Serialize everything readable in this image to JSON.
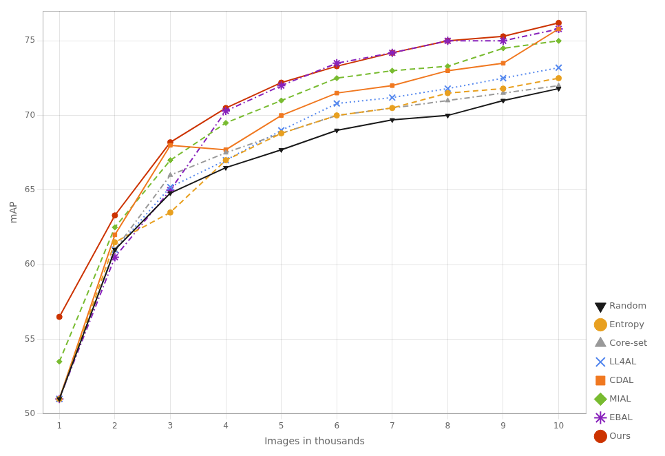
{
  "chart_data": {
    "type": "line",
    "x_label": "Images in thousands",
    "y_label": "mAP",
    "x": [
      1,
      2,
      3,
      4,
      5,
      6,
      7,
      8,
      9,
      10
    ],
    "series": [
      {
        "name": "Random",
        "color": "#1a1a1a",
        "line_style": "solid",
        "marker": "triangle_down",
        "values": [
          51.0,
          61.0,
          64.8,
          66.5,
          67.7,
          69.0,
          69.7,
          70.0,
          71.0,
          71.8
        ]
      },
      {
        "name": "Entropy",
        "color": "#E8A020",
        "line_style": "dashed",
        "marker": "circle",
        "values": [
          51.0,
          61.5,
          63.5,
          67.0,
          68.8,
          70.0,
          70.5,
          71.5,
          71.8,
          72.5
        ]
      },
      {
        "name": "Core-set",
        "color": "#999999",
        "line_style": "dashdot",
        "marker": "triangle",
        "values": [
          51.0,
          61.0,
          66.0,
          67.5,
          68.8,
          70.0,
          70.5,
          71.0,
          71.5,
          72.0
        ]
      },
      {
        "name": "LL4AL",
        "color": "#5588EE",
        "line_style": "dotted",
        "marker": "x",
        "values": [
          51.0,
          61.0,
          65.2,
          67.0,
          69.0,
          70.8,
          71.2,
          71.8,
          72.5,
          73.2
        ]
      },
      {
        "name": "CDAL",
        "color": "#F07820",
        "line_style": "solid",
        "marker": "square",
        "values": [
          51.0,
          62.0,
          68.0,
          67.7,
          70.0,
          71.5,
          72.0,
          73.0,
          73.5,
          75.8
        ]
      },
      {
        "name": "MIAL",
        "color": "#78BB30",
        "line_style": "dashed",
        "marker": "diamond",
        "values": [
          53.5,
          62.5,
          67.0,
          69.5,
          71.0,
          72.5,
          73.0,
          73.3,
          74.5,
          75.0
        ]
      },
      {
        "name": "EBAL",
        "color": "#8822BB",
        "line_style": "dashdot",
        "marker": "star",
        "values": [
          51.0,
          60.5,
          65.0,
          70.3,
          72.0,
          73.5,
          74.2,
          75.0,
          75.0,
          75.8
        ]
      },
      {
        "name": "Ours",
        "color": "#CC3300",
        "line_style": "solid",
        "marker": "circle",
        "values": [
          56.5,
          63.3,
          68.2,
          70.5,
          72.2,
          73.3,
          74.2,
          75.0,
          75.3,
          76.2
        ]
      }
    ],
    "xlim": [
      0.7,
      10.5
    ],
    "ylim": [
      50,
      77
    ],
    "xticks": [
      1,
      2,
      3,
      4,
      5,
      6,
      7,
      8,
      9,
      10
    ],
    "yticks": [
      50,
      55,
      60,
      65,
      70,
      75
    ],
    "grid": true,
    "legend": "lower right"
  }
}
